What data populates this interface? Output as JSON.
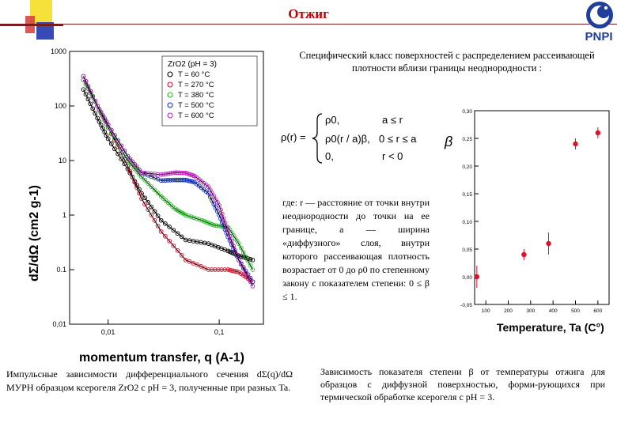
{
  "slide": {
    "title": "Отжиг",
    "logo_text": "PNPI",
    "caption_right_top": "Специфический класс поверхностей с распределением рассеивающей плотности вблизи границы неоднородности :",
    "where_text": "где: r — расстояние от точки внутри неоднородности до точки на ее границе, a — ширина «диффузного» слоя, внутри которого рассеивающая плотность возрастает от 0 до ρ0 по степенному закону с показателем степени: 0 ≤ β ≤ 1.",
    "caption_left": "Импульсные зависимости дифференциального сечения dΣ(q)/dΩ МУРН образцом ксерогеля ZrO2 с pH = 3, полученные при разных Ta.",
    "caption_right_bottom": "Зависимость показателя степени β от температуры отжига для образцов с диффузной поверхностью, форми-рующихся при термической обработке ксерогеля с pH = 3."
  },
  "formula": {
    "lhs": "ρ(r) =",
    "case1_value": "ρ0,",
    "case1_cond": "a ≤ r",
    "case2_value": "ρ0(r / a)β,",
    "case2_cond": "0 ≤ r ≤ a",
    "case3_value": "0,",
    "case3_cond": "r < 0"
  },
  "colors": {
    "black": "#000000",
    "red": "#e0102a",
    "green": "#20c020",
    "blue": "#1030c0",
    "magenta": "#c020c0",
    "title_red": "#c00000"
  },
  "chart_data": [
    {
      "type": "scatter",
      "title": "",
      "xlabel": "momentum transfer, q (A-1)",
      "ylabel": "dΣ/dΩ (cm2 g-1)",
      "x_scale": "log",
      "y_scale": "log",
      "xlim": [
        0.0045,
        0.25
      ],
      "ylim": [
        0.01,
        1000
      ],
      "x_ticks": [
        "0,01",
        "0,1"
      ],
      "y_ticks": [
        "1000",
        "100",
        "10",
        "1",
        "0.1",
        "0,01"
      ],
      "legend_title": "ZrO2 (pH = 3)",
      "legend_placement": "top-right",
      "series": [
        {
          "name": "T = 60 °C",
          "color": "#000000",
          "x": [
            0.006,
            0.008,
            0.01,
            0.015,
            0.02,
            0.03,
            0.05,
            0.08,
            0.12,
            0.15,
            0.2
          ],
          "y": [
            200,
            60,
            25,
            7,
            2.5,
            0.8,
            0.35,
            0.3,
            0.22,
            0.18,
            0.15
          ]
        },
        {
          "name": "T = 270 °C",
          "color": "#e0102a",
          "x": [
            0.006,
            0.008,
            0.01,
            0.015,
            0.02,
            0.03,
            0.05,
            0.08,
            0.12,
            0.15,
            0.2
          ],
          "y": [
            300,
            100,
            40,
            8,
            2.0,
            0.5,
            0.15,
            0.1,
            0.1,
            0.09,
            0.06
          ]
        },
        {
          "name": "T = 380 °C",
          "color": "#20c020",
          "x": [
            0.006,
            0.008,
            0.01,
            0.015,
            0.02,
            0.03,
            0.04,
            0.05,
            0.07,
            0.09,
            0.12,
            0.15,
            0.2
          ],
          "y": [
            300,
            100,
            40,
            10,
            5,
            2.2,
            1.3,
            1.0,
            0.8,
            0.65,
            0.6,
            0.3,
            0.1
          ]
        },
        {
          "name": "T = 500 °C",
          "color": "#1030c0",
          "x": [
            0.006,
            0.008,
            0.01,
            0.015,
            0.02,
            0.03,
            0.04,
            0.05,
            0.06,
            0.08,
            0.1,
            0.12,
            0.15,
            0.2
          ],
          "y": [
            350,
            100,
            45,
            12,
            6,
            4.3,
            4.4,
            4.4,
            4.0,
            2.5,
            1.0,
            0.4,
            0.15,
            0.06
          ]
        },
        {
          "name": "T = 600 °C",
          "color": "#c020c0",
          "x": [
            0.006,
            0.008,
            0.01,
            0.015,
            0.02,
            0.03,
            0.04,
            0.05,
            0.06,
            0.08,
            0.1,
            0.12,
            0.15,
            0.2
          ],
          "y": [
            350,
            100,
            45,
            12,
            6,
            5.5,
            6,
            5.9,
            5.2,
            3.3,
            1.5,
            0.5,
            0.15,
            0.05
          ]
        }
      ]
    },
    {
      "type": "scatter",
      "title": "",
      "xlabel": "Temperature, Ta (C°)",
      "ylabel": "β",
      "xlim": [
        50,
        650
      ],
      "ylim": [
        -0.05,
        0.3
      ],
      "x_ticks": [
        "100",
        "200",
        "300",
        "400",
        "500",
        "600"
      ],
      "y_ticks": [
        "0,30",
        "0,25",
        "0,20",
        "0,15",
        "0,10",
        "0,05",
        "0,00",
        "-0,05"
      ],
      "series": [
        {
          "name": "",
          "color": "#e0102a",
          "x": [
            60,
            270,
            380,
            500,
            600
          ],
          "y": [
            0.0,
            0.04,
            0.06,
            0.24,
            0.26
          ],
          "err": [
            0.02,
            0.01,
            0.02,
            0.01,
            0.01
          ]
        }
      ]
    }
  ]
}
